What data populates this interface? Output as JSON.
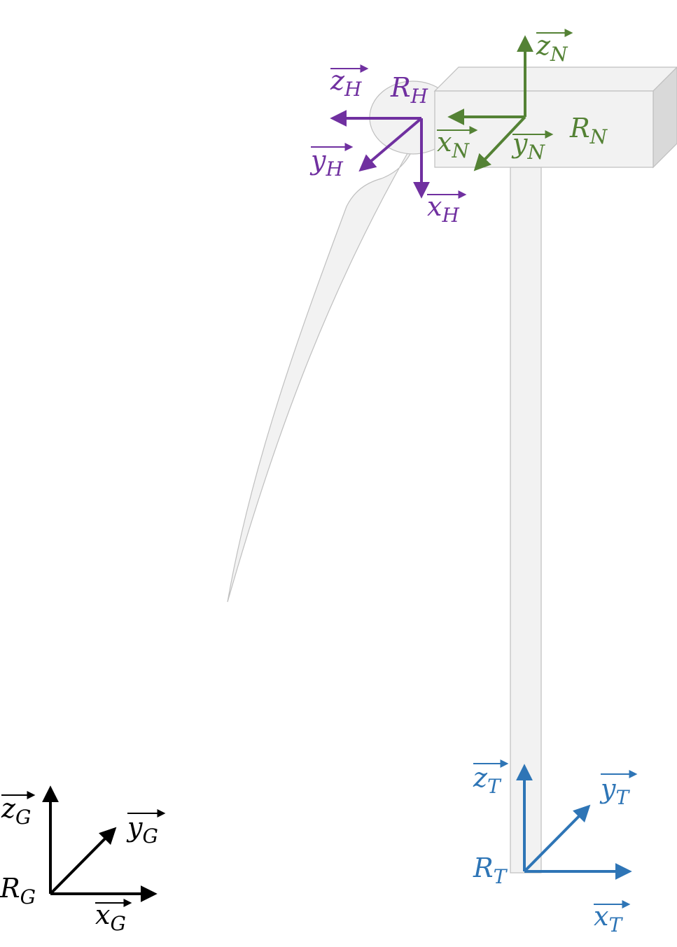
{
  "colors": {
    "global": "#000000",
    "tower": "#2e75b6",
    "nacelle": "#548235",
    "hub": "#7030a0",
    "structure_fill": "#f2f2f2",
    "structure_stroke": "#bfbfbf"
  },
  "frames": {
    "global": {
      "origin": {
        "main": "R",
        "sub": "G"
      },
      "x": {
        "main": "x",
        "sub": "G"
      },
      "y": {
        "main": "y",
        "sub": "G"
      },
      "z": {
        "main": "z",
        "sub": "G"
      }
    },
    "tower": {
      "origin": {
        "main": "R",
        "sub": "T"
      },
      "x": {
        "main": "x",
        "sub": "T"
      },
      "y": {
        "main": "y",
        "sub": "T"
      },
      "z": {
        "main": "z",
        "sub": "T"
      }
    },
    "nacelle": {
      "origin": {
        "main": "R",
        "sub": "N"
      },
      "x": {
        "main": "x",
        "sub": "N"
      },
      "y": {
        "main": "y",
        "sub": "N"
      },
      "z": {
        "main": "z",
        "sub": "N"
      }
    },
    "hub": {
      "origin": {
        "main": "R",
        "sub": "H"
      },
      "x": {
        "main": "x",
        "sub": "H"
      },
      "y": {
        "main": "y",
        "sub": "H"
      },
      "z": {
        "main": "z",
        "sub": "H"
      }
    }
  }
}
